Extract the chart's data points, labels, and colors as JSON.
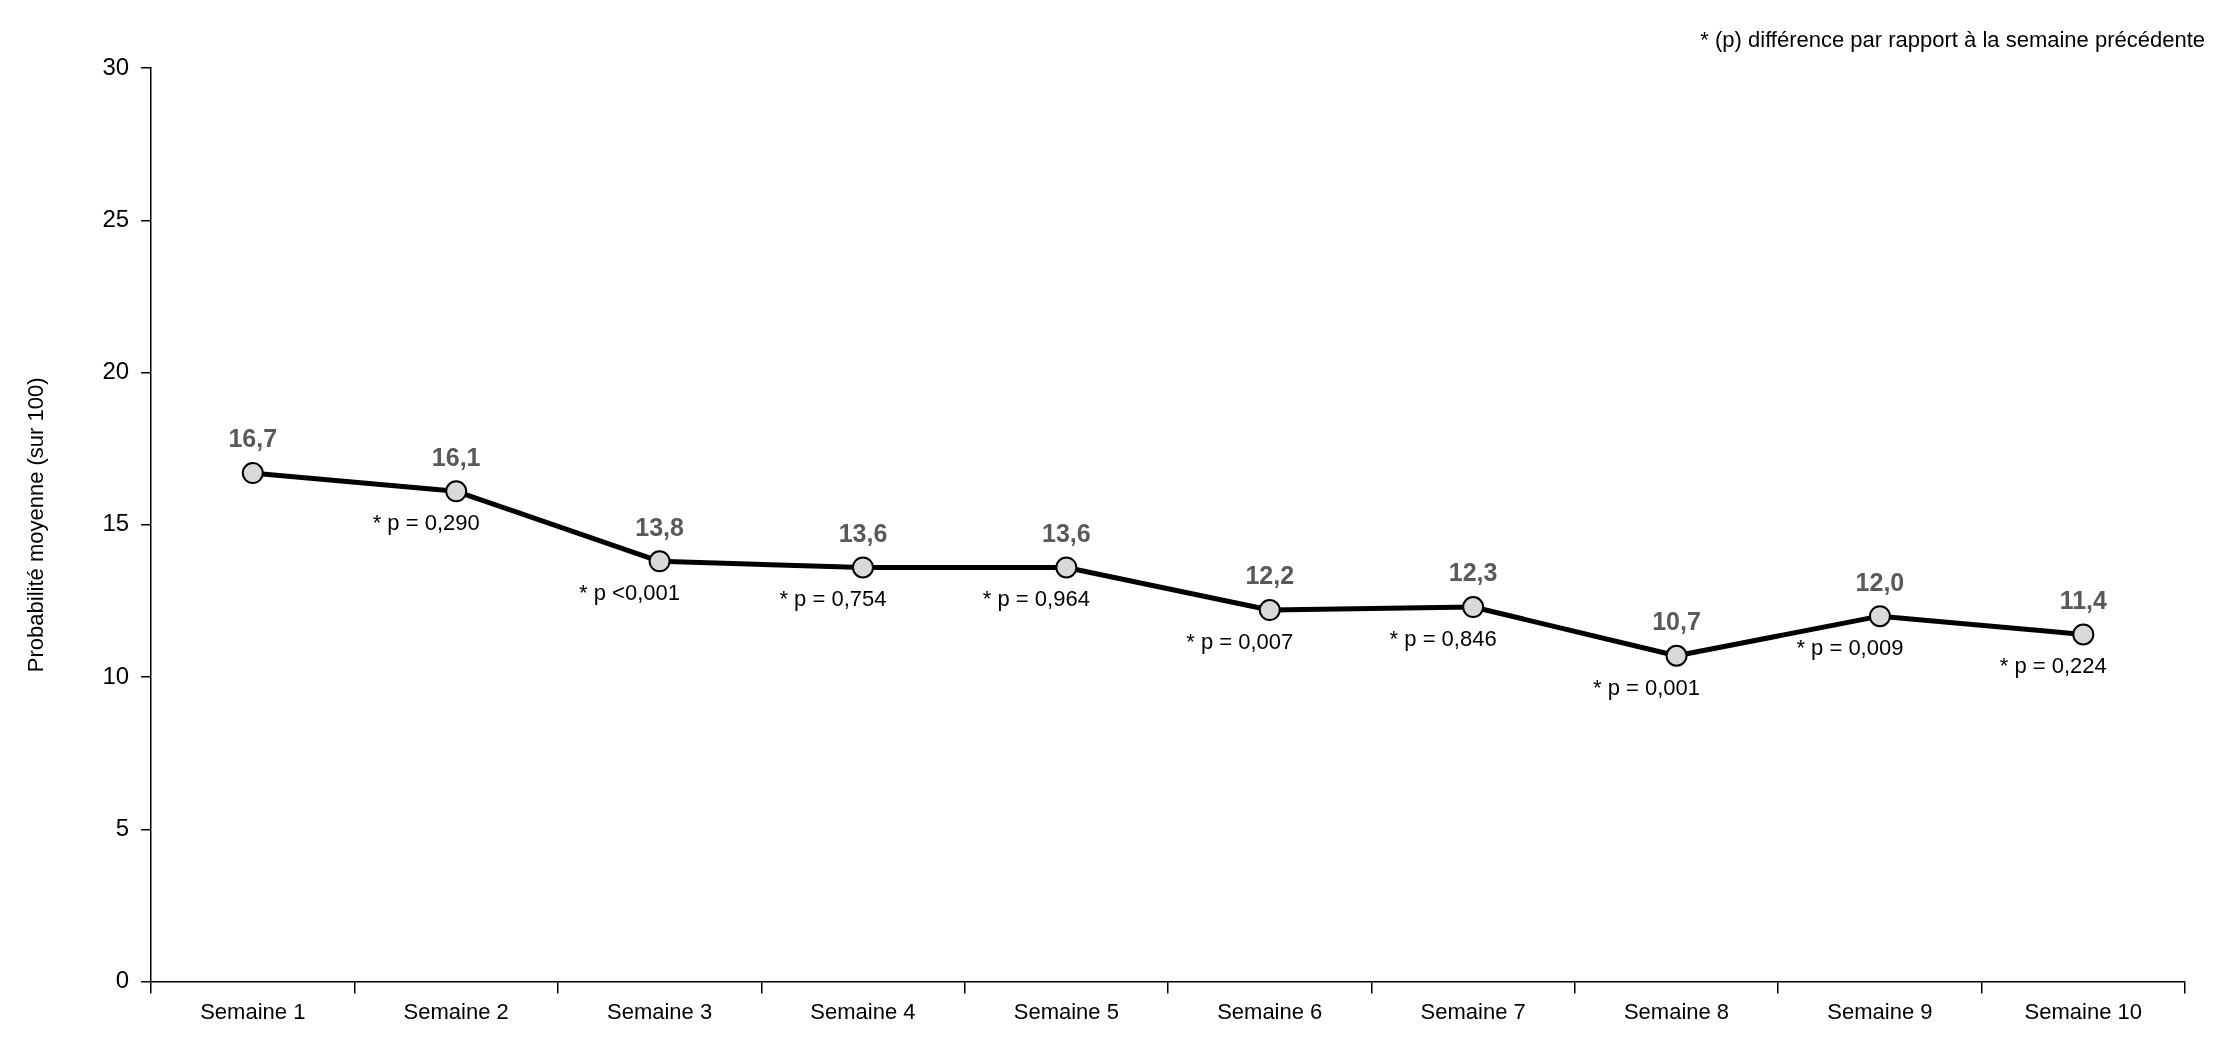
{
  "chart_data": {
    "type": "line",
    "ylabel": "Probabilité moyenne (sur 100)",
    "categories": [
      "Semaine 1",
      "Semaine 2",
      "Semaine 3",
      "Semaine 4",
      "Semaine 5",
      "Semaine 6",
      "Semaine 7",
      "Semaine 8",
      "Semaine 9",
      "Semaine 10"
    ],
    "series": [
      {
        "color": "#000000",
        "values": [
          16.7,
          16.1,
          13.8,
          13.6,
          13.6,
          12.2,
          12.3,
          10.7,
          12.0,
          11.4
        ],
        "value_labels": [
          "16,7",
          "16,1",
          "13,8",
          "13,6",
          "13,6",
          "12,2",
          "12,3",
          "10,7",
          "12,0",
          "11,4"
        ]
      }
    ],
    "ylim": [
      0,
      30
    ],
    "yticks": [
      0,
      5,
      10,
      15,
      20,
      25,
      30
    ],
    "grid": false,
    "legend": false,
    "marker": "circle",
    "line_style": "solid",
    "annotations": [
      "* (p) différence par rapport à la semaine précédente",
      {
        "text": "* p = 0,290",
        "x": "Semaine 2",
        "y": 16.1
      },
      {
        "text": "* p <0,001",
        "x": "Semaine 3",
        "y": 13.8
      },
      {
        "text": "* p = 0,754",
        "x": "Semaine 4",
        "y": 13.6
      },
      {
        "text": "* p = 0,964",
        "x": "Semaine 5",
        "y": 13.6
      },
      {
        "text": "* p = 0,007",
        "x": "Semaine 6",
        "y": 12.2
      },
      {
        "text": "* p = 0,846",
        "x": "Semaine 7",
        "y": 12.3
      },
      {
        "text": "* p = 0,001",
        "x": "Semaine 8",
        "y": 10.7
      },
      {
        "text": "* p = 0,009",
        "x": "Semaine 9",
        "y": 12.0
      },
      {
        "text": "* p = 0,224",
        "x": "Semaine 10",
        "y": 11.4
      }
    ]
  }
}
